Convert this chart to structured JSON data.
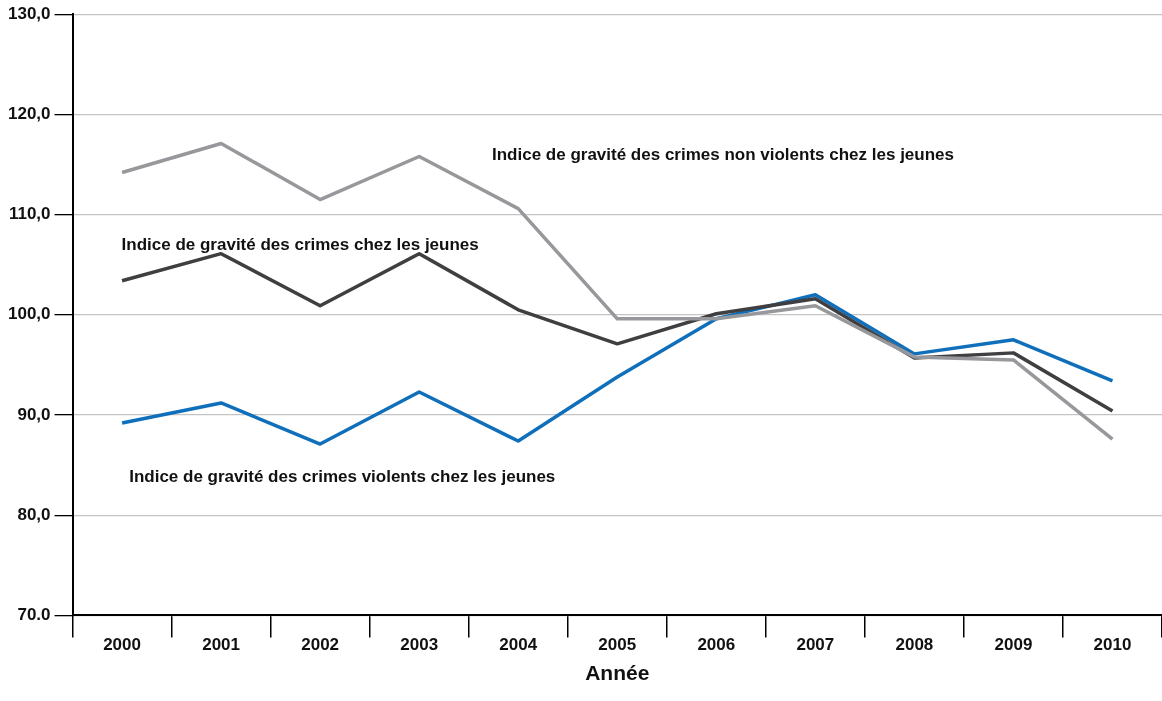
{
  "chart_data": {
    "type": "line",
    "xlabel": "Année",
    "categories": [
      "2000",
      "2001",
      "2002",
      "2003",
      "2004",
      "2005",
      "2006",
      "2007",
      "2008",
      "2009",
      "2010"
    ],
    "series": [
      {
        "name": "Indice de gravité des crimes non violents chez les jeunes",
        "color": "#97989b",
        "values": [
          114.2,
          117.1,
          111.5,
          115.8,
          110.6,
          99.6,
          99.6,
          100.9,
          95.8,
          95.5,
          87.6
        ]
      },
      {
        "name": "Indice de gravité des crimes chez les jeunes",
        "color": "#3f3f41",
        "values": [
          103.4,
          106.1,
          100.9,
          106.1,
          100.5,
          97.1,
          100.1,
          101.6,
          95.7,
          96.2,
          90.4
        ]
      },
      {
        "name": "Indice de gravité des crimes violents chez les jeunes",
        "color": "#0f6fba",
        "values": [
          89.2,
          91.2,
          87.1,
          92.3,
          87.4,
          93.8,
          99.6,
          102.0,
          96.1,
          97.5,
          93.4
        ]
      }
    ],
    "ylim": [
      70,
      130
    ],
    "yticks": [
      {
        "value": 70,
        "label": "70.0"
      },
      {
        "value": 80,
        "label": "80,0"
      },
      {
        "value": 90,
        "label": "90,0"
      },
      {
        "value": 100,
        "label": "100,0"
      },
      {
        "value": 110,
        "label": "110,0"
      },
      {
        "value": 120,
        "label": "120,0"
      },
      {
        "value": 130,
        "label": "130,0"
      }
    ],
    "grid": "y",
    "legend": false,
    "marker": "none",
    "line_style": "solid"
  }
}
